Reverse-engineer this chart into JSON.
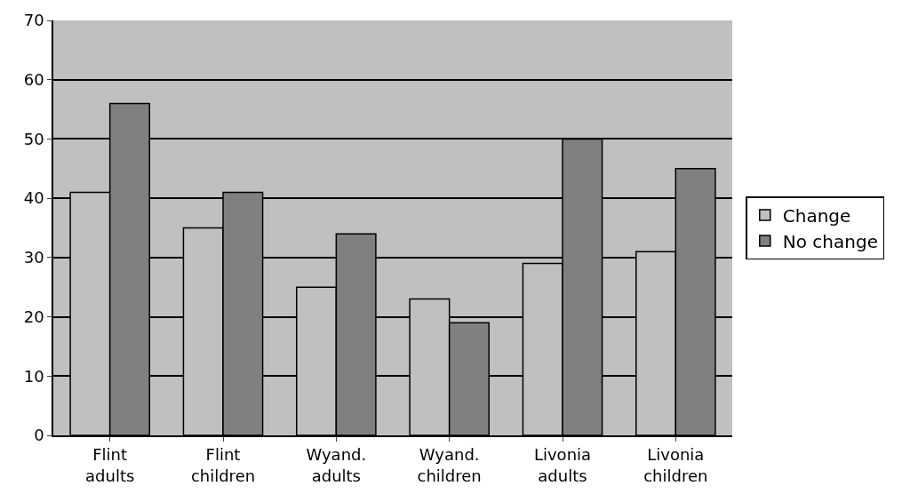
{
  "chart_data": {
    "type": "bar",
    "categories": [
      "Flint adults",
      "Flint children",
      "Wyand. adults",
      "Wyand. children",
      "Livonia adults",
      "Livonia children"
    ],
    "series": [
      {
        "name": "Change",
        "color": "#c0c0c0",
        "values": [
          41,
          35,
          25,
          23,
          29,
          31
        ]
      },
      {
        "name": "No change",
        "color": "#808080",
        "values": [
          56,
          41,
          34,
          19,
          50,
          45
        ]
      }
    ],
    "ylim": [
      0,
      70
    ],
    "yticks": [
      0,
      10,
      20,
      30,
      40,
      50,
      60,
      70
    ],
    "grid": "y",
    "legend": "right"
  }
}
